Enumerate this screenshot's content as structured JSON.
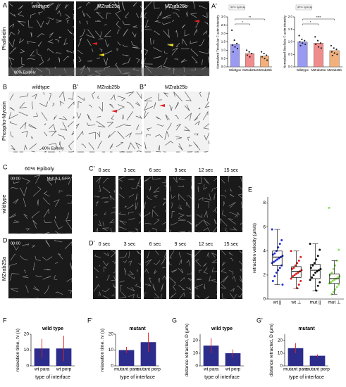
{
  "labels": {
    "A": "A",
    "A2": "A'",
    "B": "B",
    "B2": "B'",
    "B3": "B''",
    "C": "C",
    "C2": "C'",
    "D": "D",
    "D2": "D'",
    "E": "E",
    "F": "F",
    "F2": "F'",
    "G": "G",
    "G2": "G'"
  },
  "row_a": {
    "stain": "Phalloidin",
    "titles": [
      "wildtype",
      "MZrab25a",
      "MZrab25b"
    ],
    "stage": "80% Epiboly"
  },
  "row_b": {
    "stain": "Phospho-Myosin",
    "titles": [
      "wildtype",
      "MZrab25b",
      "MZrab25b"
    ],
    "stage": "80% Epiboly"
  },
  "row_c": {
    "stage": "60% Epiboly",
    "time": "00:00",
    "marker": "Myl12.1-GFP",
    "genotype": "wildtype",
    "frames": [
      "0 sec",
      "3 sec",
      "6 sec",
      "9 sec",
      "12 sec",
      "15 sec"
    ]
  },
  "row_d": {
    "time": "00:00",
    "genotype": "MZrab25a",
    "frames": [
      "0 sec",
      "3 sec",
      "6 sec",
      "9 sec",
      "12 sec",
      "15 sec"
    ]
  },
  "chart_data": [
    {
      "type": "bar",
      "note": "80% Epiboly",
      "ylabel": "Normalized Tricellular F-actin Intensity",
      "categories": [
        "Wildtype",
        "MZrab25a",
        "MZrab25b"
      ],
      "values": [
        1.35,
        0.8,
        0.65
      ],
      "colors": [
        "#9a9af2",
        "#f08c8c",
        "#f2b07c"
      ],
      "points": [
        [
          2.2,
          1.6,
          1.4,
          1.3,
          1.2,
          1.1,
          0.9
        ],
        [
          1.0,
          0.9,
          0.8,
          0.7,
          0.6
        ],
        [
          0.9,
          0.8,
          0.7,
          0.6,
          0.5,
          0.4
        ]
      ],
      "annotations": [
        "*",
        "**"
      ],
      "ylim": [
        0,
        3
      ],
      "yticks": [
        {
          "value": 0,
          "label": "0.0"
        },
        {
          "value": 0.5,
          "label": "0.5"
        },
        {
          "value": 1,
          "label": "1.0"
        },
        {
          "value": 1.5,
          "label": "1.5"
        },
        {
          "value": 2,
          "label": "2.0"
        },
        {
          "value": 2.5,
          "label": "2.5"
        },
        {
          "value": 3,
          "label": "3.0"
        }
      ]
    },
    {
      "type": "bar",
      "note": "80% Epiboly",
      "ylabel": "Normalized Bicellular F-actin intensity",
      "categories": [
        "Wildtype",
        "MZrab25a",
        "MZrab25b"
      ],
      "values": [
        1.0,
        0.95,
        0.65
      ],
      "colors": [
        "#9a9af2",
        "#f08c8c",
        "#f2b07c"
      ],
      "points": [
        [
          1.25,
          1.1,
          1.05,
          1.0,
          0.95,
          0.9,
          0.85
        ],
        [
          1.2,
          1.05,
          0.95,
          0.9,
          0.8,
          0.75
        ],
        [
          0.85,
          0.75,
          0.7,
          0.6,
          0.55,
          0.5,
          0.45
        ]
      ],
      "annotations": [
        "*",
        "****"
      ],
      "ylim": [
        0,
        2
      ],
      "yticks": [
        {
          "value": 0,
          "label": "0.0"
        },
        {
          "value": 0.5,
          "label": "0.5"
        },
        {
          "value": 1,
          "label": "1.0"
        },
        {
          "value": 1.5,
          "label": "1.5"
        },
        {
          "value": 2,
          "label": "2.0"
        }
      ]
    },
    {
      "type": "box",
      "ylabel": "retraction velocity (μm/s)",
      "categories": [
        "wt ||",
        "wt ⊥",
        "mut ||",
        "mut ⊥"
      ],
      "colors": [
        "#1f2fd6",
        "#e0201f",
        "#111111",
        "#8be05a"
      ],
      "points": [
        [
          5.8,
          4.9,
          4.6,
          4.3,
          4.0,
          3.8,
          3.7,
          3.6,
          3.5,
          3.4,
          3.3,
          3.2,
          3.1,
          3.0,
          2.8,
          2.6,
          2.4,
          2.2,
          1.9,
          1.5,
          1.2
        ],
        [
          4.0,
          3.5,
          3.2,
          3.0,
          2.8,
          2.6,
          2.5,
          2.4,
          2.3,
          2.2,
          2.1,
          2.0,
          1.9,
          1.7,
          1.5,
          1.2,
          0.9
        ],
        [
          4.6,
          4.1,
          3.6,
          3.3,
          3.0,
          2.8,
          2.6,
          2.5,
          2.4,
          2.3,
          2.2,
          2.0,
          1.8,
          1.6,
          1.4,
          1.1,
          0.7
        ],
        [
          7.6,
          4.1,
          3.2,
          2.8,
          2.5,
          2.2,
          2.0,
          1.9,
          1.8,
          1.7,
          1.6,
          1.5,
          1.4,
          1.3,
          1.2,
          1.0,
          0.8,
          0.6,
          0.4
        ]
      ],
      "boxes": [
        {
          "low": 1.2,
          "q1": 2.8,
          "median": 3.5,
          "q3": 4.0,
          "high": 5.8
        },
        {
          "low": 0.9,
          "q1": 1.8,
          "median": 2.3,
          "q3": 2.7,
          "high": 4.0
        },
        {
          "low": 0.7,
          "q1": 1.7,
          "median": 2.4,
          "q3": 2.9,
          "high": 4.6
        },
        {
          "low": 0.4,
          "q1": 1.3,
          "median": 1.7,
          "q3": 2.1,
          "high": 3.2
        }
      ],
      "ylim": [
        0,
        8.5
      ],
      "yticks": [
        0,
        2,
        4,
        6,
        8
      ]
    },
    {
      "type": "bar",
      "title": "wild type",
      "ylabel": "relaxation time, τv (s)",
      "xlabel": "type of interface",
      "categories": [
        "wt para",
        "wt perp"
      ],
      "values": [
        11,
        11
      ],
      "errors": [
        6,
        8
      ],
      "color": "#2c2c8c",
      "error_color": "#e0201f",
      "ylim": [
        0,
        20
      ],
      "yticks": [
        0,
        10,
        20
      ]
    },
    {
      "type": "bar",
      "title": "mutant",
      "ylabel": "relaxation time, τv (s)",
      "xlabel": "type of interface",
      "categories": [
        "mutant para",
        "mutant perp"
      ],
      "values": [
        10,
        15
      ],
      "errors": [
        2,
        6
      ],
      "color": "#2c2c8c",
      "error_color": "#e0201f",
      "ylim": [
        0,
        20
      ],
      "yticks": [
        0,
        10,
        20
      ]
    },
    {
      "type": "bar",
      "title": "wild type",
      "ylabel": "distance retracted, D (μm)",
      "xlabel": "type of interface",
      "categories": [
        "wt para",
        "wt perp"
      ],
      "values": [
        16,
        10
      ],
      "errors": [
        6,
        3
      ],
      "color": "#2c2c8c",
      "error_color": "#e0201f",
      "ylim": [
        0,
        25
      ],
      "yticks": [
        0,
        10,
        20
      ]
    },
    {
      "type": "bar",
      "title": "mutant",
      "ylabel": "distance retracted, D (μm)",
      "xlabel": "type of interface",
      "categories": [
        "mutant para",
        "mutant perp"
      ],
      "values": [
        14,
        8
      ],
      "errors": [
        4,
        1
      ],
      "color": "#2c2c8c",
      "error_color": "#e0201f",
      "ylim": [
        0,
        25
      ],
      "yticks": [
        0,
        10,
        20
      ]
    }
  ]
}
